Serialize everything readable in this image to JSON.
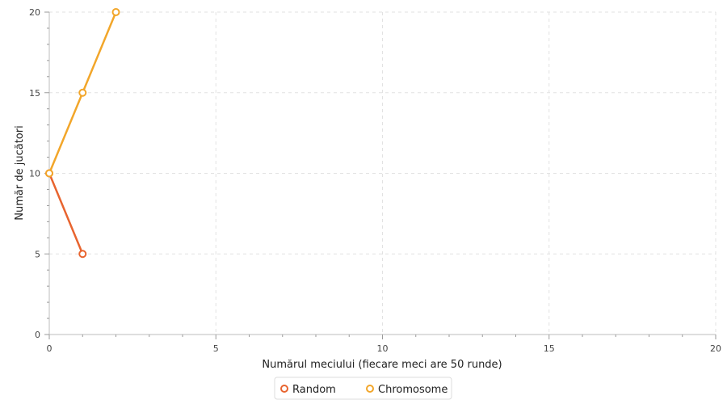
{
  "chart_data": {
    "type": "line",
    "title": "",
    "xlabel": "Numărul meciului (fiecare meci are 50 runde)",
    "ylabel": "Număr de jucători",
    "xlim": [
      0,
      20
    ],
    "ylim": [
      0,
      20
    ],
    "x_ticks": [
      "0",
      "5",
      "10",
      "15",
      "20"
    ],
    "y_ticks": [
      "0",
      "5",
      "10",
      "15",
      "20"
    ],
    "grid": true,
    "legend_position": "bottom-center",
    "series": [
      {
        "name": "Random",
        "color": "#e8642f",
        "points": [
          [
            0,
            10
          ],
          [
            1,
            5
          ]
        ]
      },
      {
        "name": "Chromosome",
        "color": "#f2a62a",
        "points": [
          [
            0,
            10
          ],
          [
            1,
            15
          ],
          [
            2,
            20
          ]
        ]
      }
    ]
  }
}
